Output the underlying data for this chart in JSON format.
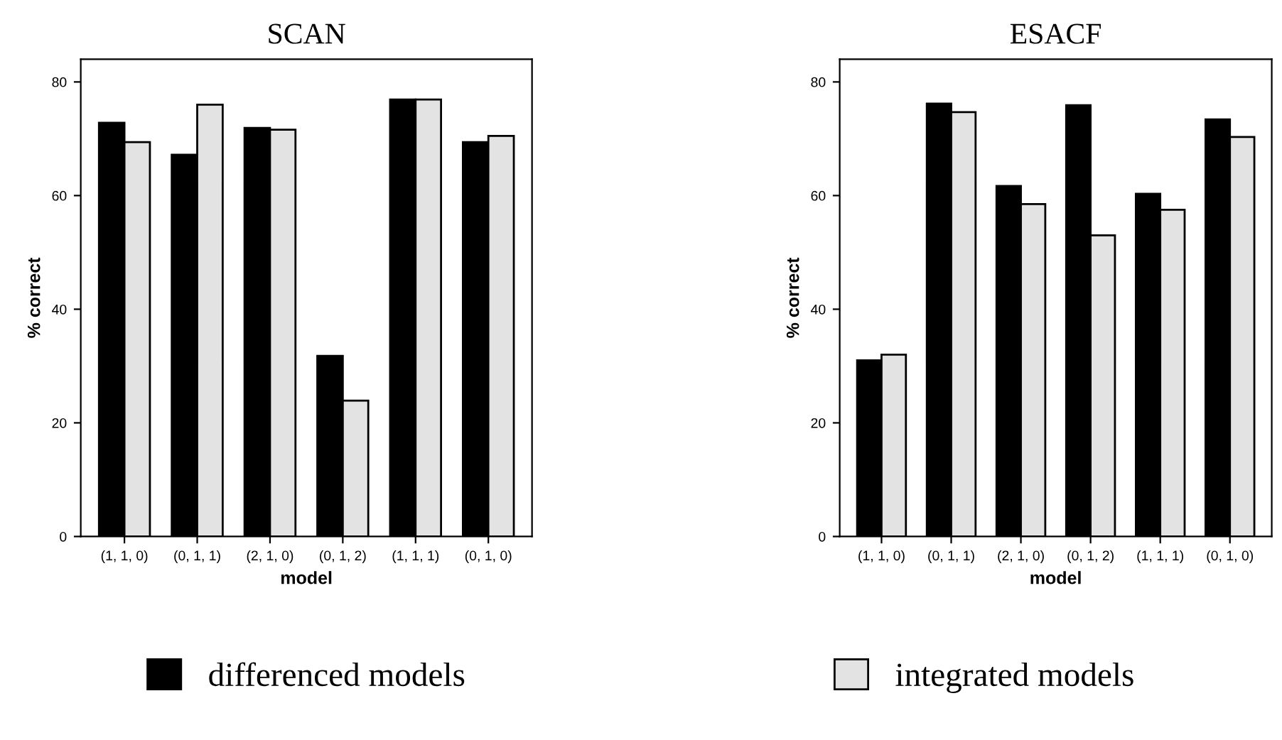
{
  "chart_data": [
    {
      "type": "bar",
      "title": "SCAN",
      "xlabel": "model",
      "ylabel": "% correct",
      "categories": [
        "(1, 1, 0)",
        "(0, 1, 1)",
        "(2, 1, 0)",
        "(0, 1, 2)",
        "(1, 1, 1)",
        "(0, 1, 0)"
      ],
      "series": [
        {
          "name": "differenced models",
          "color": "#000000",
          "values": [
            72.8,
            67.2,
            71.9,
            31.8,
            76.9,
            69.4
          ]
        },
        {
          "name": "integrated models",
          "color": "#e3e3e3",
          "values": [
            69.4,
            76.0,
            71.6,
            23.9,
            76.9,
            70.5
          ]
        }
      ],
      "ylim": [
        0,
        84
      ],
      "yticks": [
        0,
        20,
        40,
        60,
        80
      ],
      "grid": false,
      "legend": "bottom"
    },
    {
      "type": "bar",
      "title": "ESACF",
      "xlabel": "model",
      "ylabel": "% correct",
      "categories": [
        "(1, 1, 0)",
        "(0, 1, 1)",
        "(2, 1, 0)",
        "(0, 1, 2)",
        "(1, 1, 1)",
        "(0, 1, 0)"
      ],
      "series": [
        {
          "color": "#000000",
          "values": [
            31.0,
            76.2,
            61.7,
            75.9,
            60.3,
            73.4
          ]
        },
        {
          "color": "#e3e3e3",
          "values": [
            32.0,
            74.7,
            58.5,
            53.0,
            57.5,
            70.3
          ]
        }
      ],
      "ylim": [
        0,
        84
      ],
      "yticks": [
        0,
        20,
        40,
        60,
        80
      ],
      "grid": false
    }
  ]
}
